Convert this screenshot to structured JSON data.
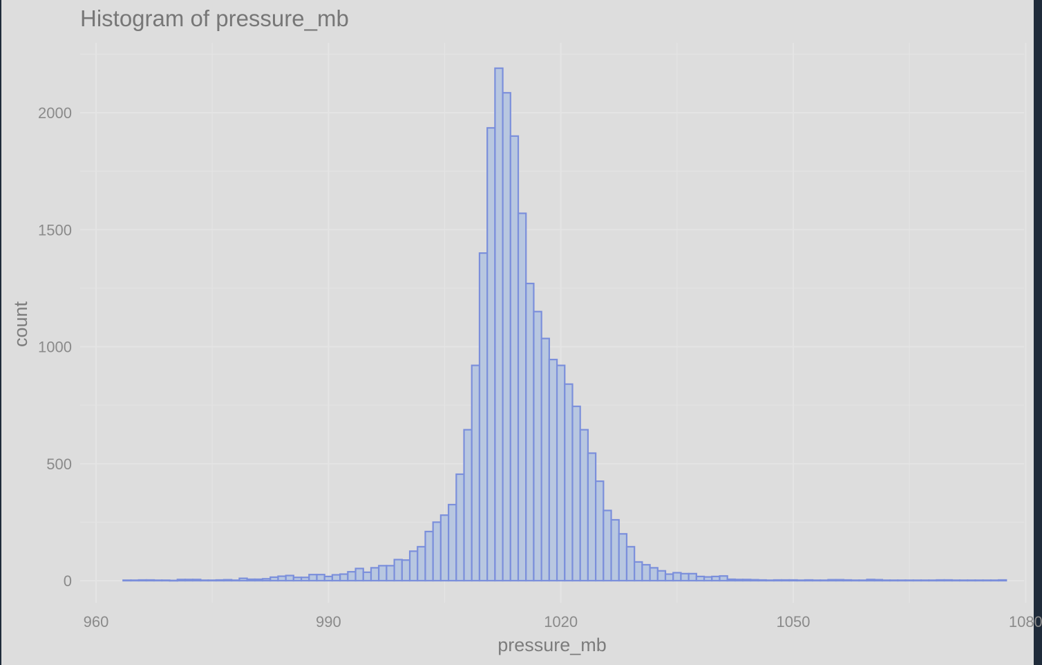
{
  "chart_data": {
    "type": "bar",
    "title": "Histogram of pressure_mb",
    "xlabel": "pressure_mb",
    "ylabel": "count",
    "xlim": [
      960,
      1080
    ],
    "ylim": [
      0,
      2200
    ],
    "x_ticks": [
      960,
      990,
      1020,
      1050,
      1080
    ],
    "y_ticks": [
      0,
      500,
      1000,
      1500,
      2000
    ],
    "grid": true,
    "legend": "none",
    "bin_width": 1,
    "bin_start": 963.5,
    "values": [
      2,
      2,
      3,
      3,
      2,
      2,
      1,
      5,
      5,
      5,
      2,
      2,
      3,
      4,
      2,
      10,
      6,
      6,
      8,
      15,
      19,
      22,
      14,
      14,
      26,
      26,
      18,
      25,
      28,
      38,
      52,
      36,
      55,
      64,
      64,
      90,
      88,
      126,
      145,
      210,
      250,
      280,
      325,
      455,
      645,
      920,
      1400,
      1935,
      2190,
      2085,
      1900,
      1570,
      1270,
      1150,
      1035,
      945,
      920,
      840,
      745,
      645,
      545,
      425,
      300,
      260,
      200,
      145,
      80,
      68,
      55,
      42,
      28,
      34,
      30,
      30,
      18,
      16,
      18,
      20,
      6,
      5,
      5,
      4,
      3,
      2,
      3,
      3,
      3,
      2,
      3,
      2,
      2,
      4,
      4,
      3,
      2,
      2,
      5,
      4,
      2,
      2,
      2,
      2,
      2,
      2,
      2,
      3,
      3,
      2,
      2,
      2,
      2,
      2,
      2,
      3
    ],
    "colors": {
      "bar_fill": "#b8c7e0",
      "bar_stroke": "#7b8fdb",
      "panel_background": "#dddddd",
      "grid": "#e4e4e4",
      "text": "#8a8a8a",
      "title": "#777777"
    }
  }
}
